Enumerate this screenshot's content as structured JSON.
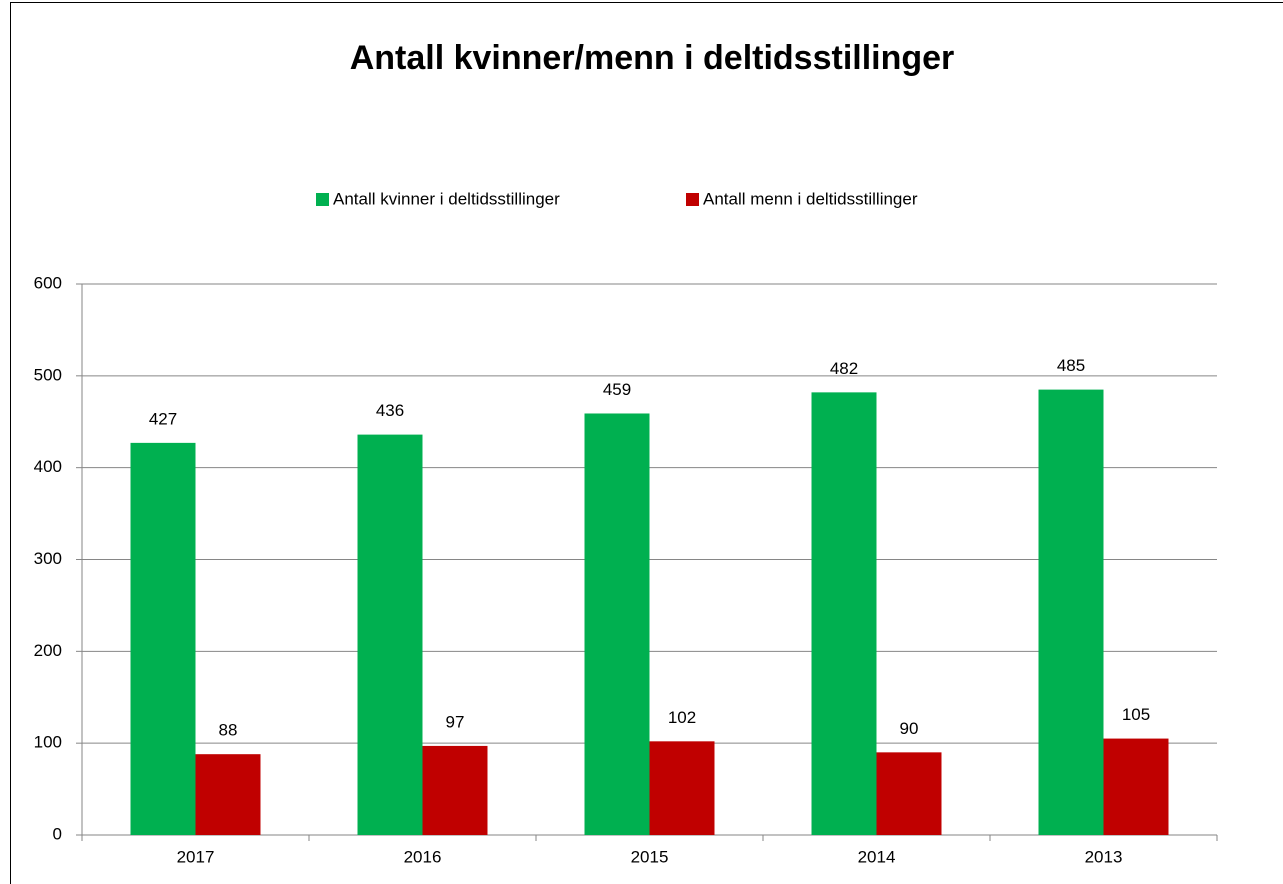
{
  "chart_data": {
    "type": "bar",
    "title": "Antall kvinner/menn i deltidsstillinger",
    "categories": [
      "2017",
      "2016",
      "2015",
      "2014",
      "2013"
    ],
    "series": [
      {
        "name": "Antall kvinner i deltidsstillinger",
        "color": "#00b050",
        "values": [
          427,
          436,
          459,
          482,
          485
        ]
      },
      {
        "name": "Antall menn i deltidsstillinger",
        "color": "#c00000",
        "values": [
          88,
          97,
          102,
          90,
          105
        ]
      }
    ],
    "ylim": [
      0,
      600
    ],
    "yticks": [
      0,
      100,
      200,
      300,
      400,
      500,
      600
    ],
    "grid": true,
    "legend": "top"
  }
}
